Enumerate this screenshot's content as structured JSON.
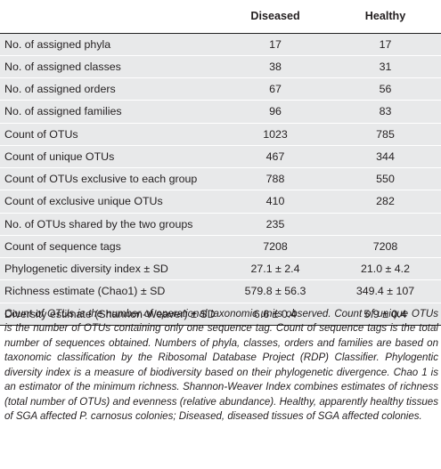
{
  "table": {
    "columns": [
      "",
      "Diseased",
      "Healthy"
    ],
    "rows": [
      {
        "label": "No. of assigned phyla",
        "diseased": "17",
        "healthy": "17"
      },
      {
        "label": "No. of assigned classes",
        "diseased": "38",
        "healthy": "31"
      },
      {
        "label": "No. of assigned orders",
        "diseased": "67",
        "healthy": "56"
      },
      {
        "label": "No. of assigned families",
        "diseased": "96",
        "healthy": "83"
      },
      {
        "label": "Count of OTUs",
        "diseased": "1023",
        "healthy": "785"
      },
      {
        "label": "Count of unique OTUs",
        "diseased": "467",
        "healthy": "344"
      },
      {
        "label": "Count of OTUs exclusive to each group",
        "diseased": "788",
        "healthy": "550"
      },
      {
        "label": "Count of exclusive unique OTUs",
        "diseased": "410",
        "healthy": "282"
      },
      {
        "label": "No. of OTUs shared by the two groups",
        "diseased": "235",
        "healthy": ""
      },
      {
        "label": "Count of sequence tags",
        "diseased": "7208",
        "healthy": "7208"
      },
      {
        "label": "Phylogenetic diversity index ± SD",
        "diseased": "27.1 ± 2.4",
        "healthy": "21.0 ± 4.2"
      },
      {
        "label": "Richness estimate (Chao1) ± SD",
        "diseased": "579.8 ± 56.3",
        "healthy": "349.4 ± 107"
      },
      {
        "label": "Diversity estimate (Shannon-Weaver) ± SD",
        "diseased": "6.6 ± 0.4",
        "healthy": "5.9 ± 0.4"
      }
    ]
  },
  "footnote": {
    "p1": "Count of OTUs is the number of operational taxonomic units observed. Count of unique OTUs is the number of OTUs containing only one sequence tag. Count of sequence tags is the total number of sequences obtained. Numbers of phyla, classes, orders and families are based on taxonomic classification by the Ribosomal Database Project (RDP) Classifier. Phylogentic diversity index is a measure of biodiversity based on their phylogenetic divergence. Chao 1 is an estimator of the minimum richness. Shannon-Weaver Index combines estimates of richness (total number of OTUs) and evenness (relative abundance). Healthy, apparently healthy tissues of SGA affected ",
    "p_genus": "P. carnosus",
    "p2": " colonies; Diseased, diseased tissues of SGA affected colonies."
  },
  "colors": {
    "row_shade": "#e8e9ea",
    "rule": "#222222",
    "text": "#231f20"
  }
}
